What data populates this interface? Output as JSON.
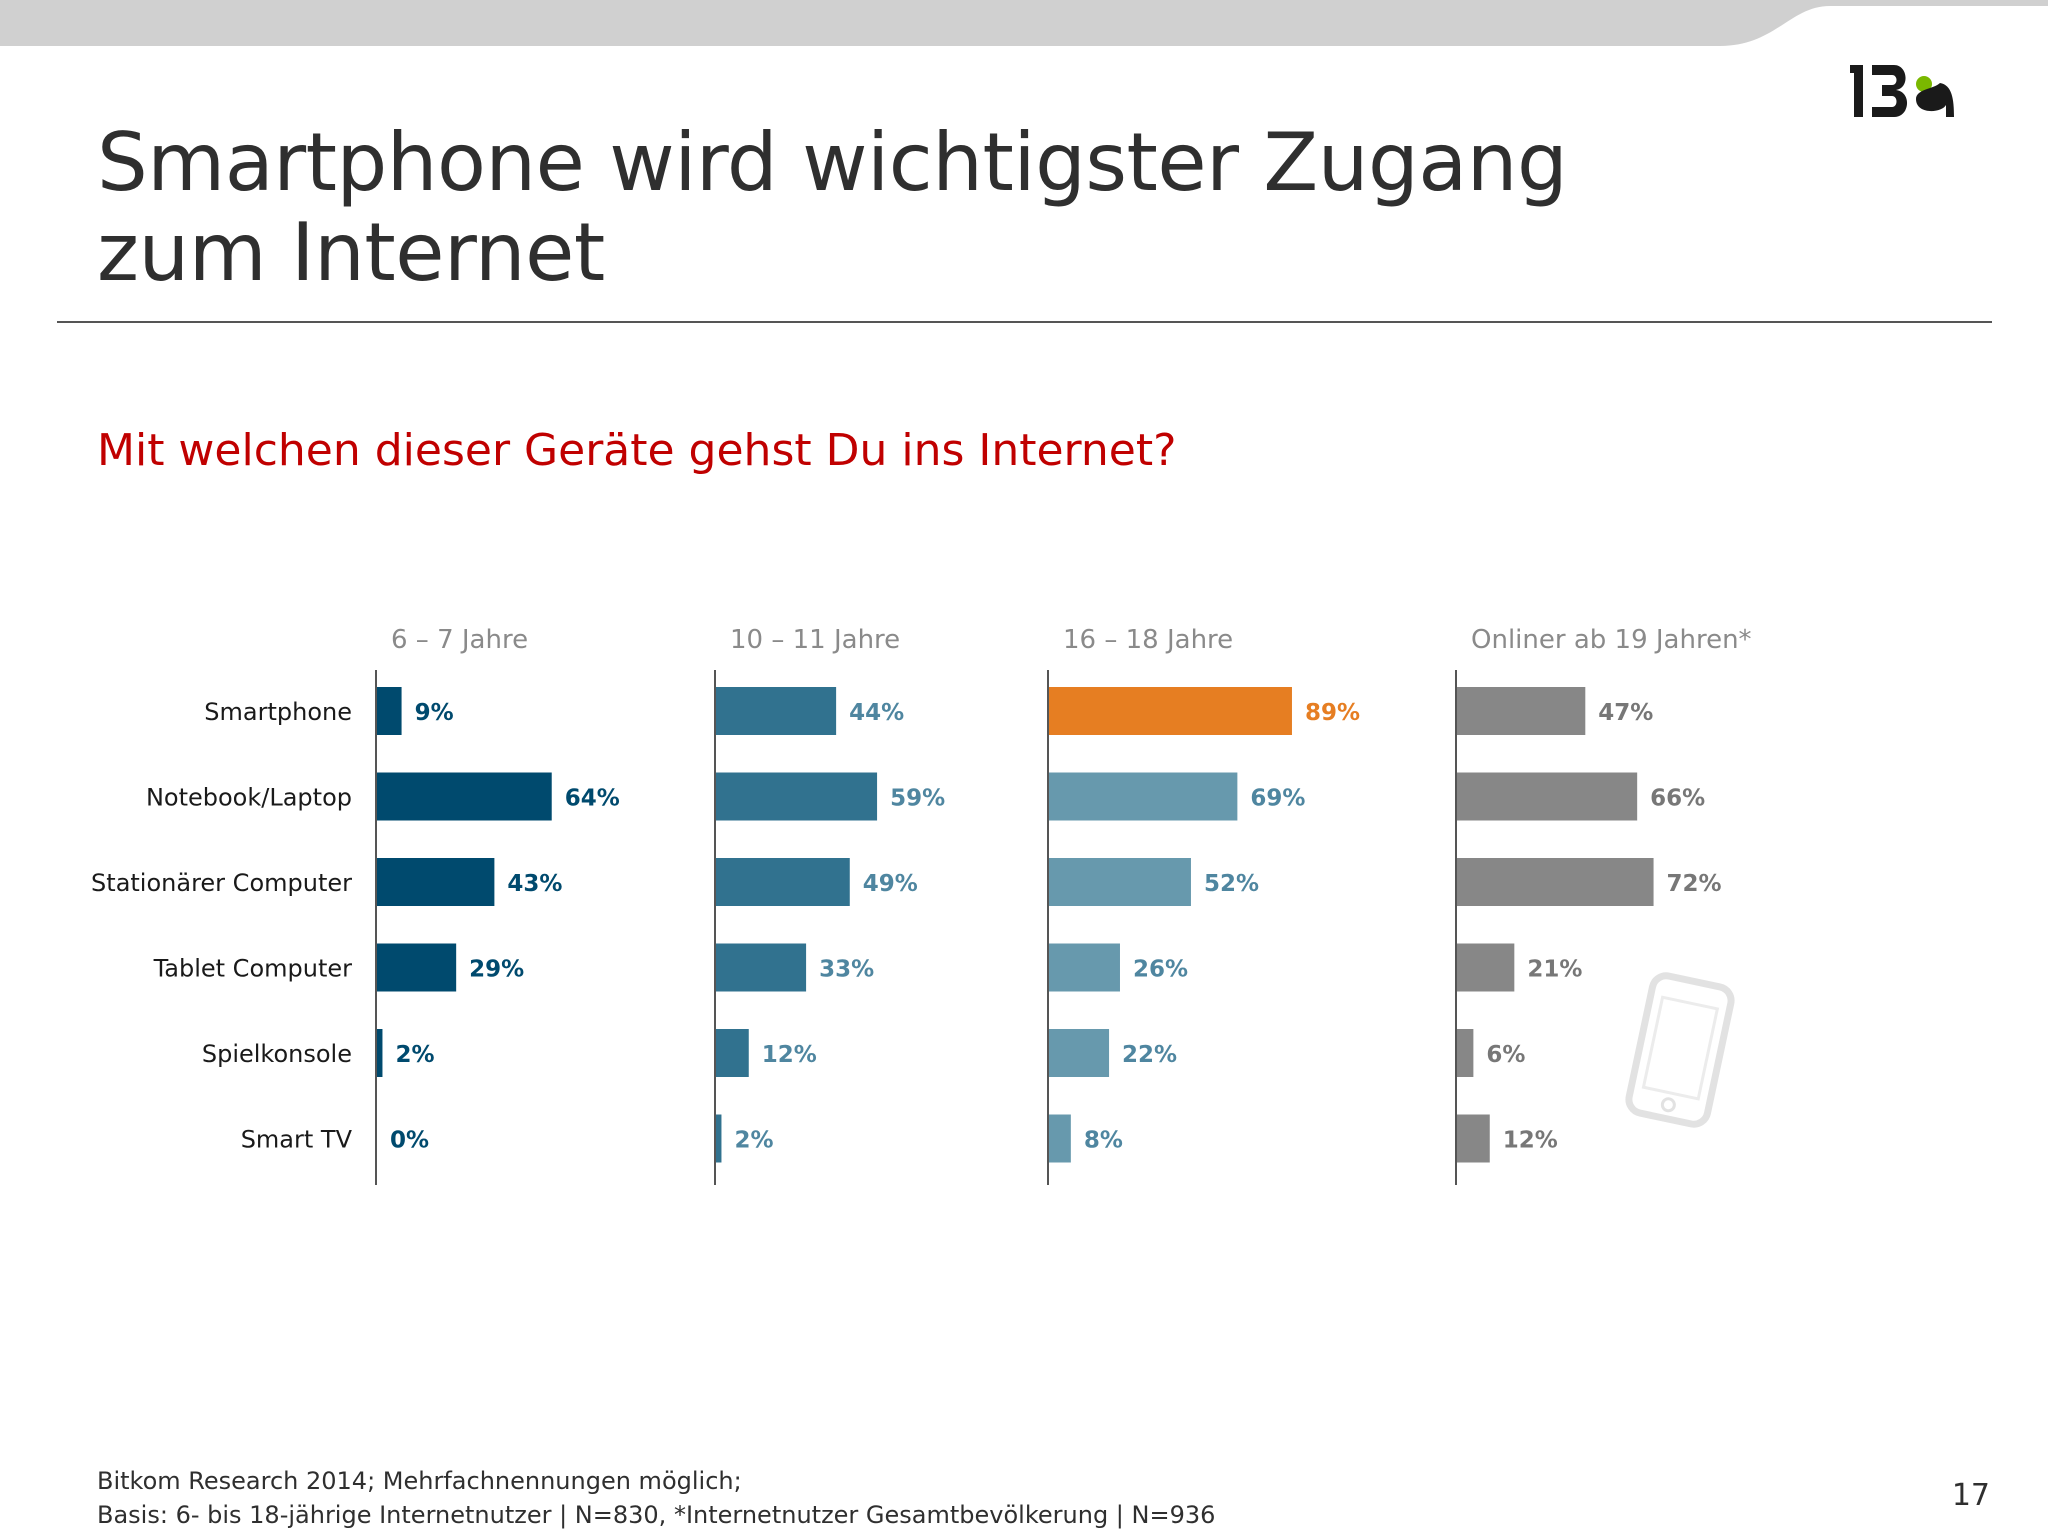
{
  "slide": {
    "title": "Smartphone wird wichtigster Zugang zum Internet",
    "question": "Mit welchen dieser Geräte gehst Du ins Internet?",
    "footnote_line1": "Bitkom Research 2014; Mehrfachnennungen möglich;",
    "footnote_line2": "Basis: 6- bis 18-jährige Internetnutzer | N=830, *Internetnutzer Gesamtbevölkerung | N=936",
    "page_number": "17",
    "logo_icon": "iba-logo-icon",
    "decoration_icon": "smartphone-outline-icon"
  },
  "chart_data": {
    "type": "bar",
    "orientation": "horizontal",
    "categories": [
      "Smartphone",
      "Notebook/Laptop",
      "Stationärer Computer",
      "Tablet Computer",
      "Spielkonsole",
      "Smart TV"
    ],
    "series": [
      {
        "name": "6 – 7 Jahre",
        "values": [
          9,
          64,
          43,
          29,
          2,
          0
        ],
        "labels": [
          "9%",
          "64%",
          "43%",
          "29%",
          "2%",
          "0%"
        ],
        "color": "#004a6e"
      },
      {
        "name": "10 – 11 Jahre",
        "values": [
          44,
          59,
          49,
          33,
          12,
          2
        ],
        "labels": [
          "44%",
          "59%",
          "49%",
          "33%",
          "12%",
          "2%"
        ],
        "color": "#31728f"
      },
      {
        "name": "16 – 18 Jahre",
        "values": [
          89,
          69,
          52,
          26,
          22,
          8
        ],
        "labels": [
          "89%",
          "69%",
          "52%",
          "26%",
          "22%",
          "8%"
        ],
        "color": "#6799ad",
        "highlight": {
          "index": 0,
          "color": "#e67e22"
        }
      },
      {
        "name": "Onliner ab 19 Jahren*",
        "values": [
          47,
          66,
          72,
          21,
          6,
          12
        ],
        "labels": [
          "47%",
          "66%",
          "72%",
          "21%",
          "6%",
          "12%"
        ],
        "color": "#878787"
      }
    ],
    "unit": "%",
    "xlim": [
      0,
      100
    ],
    "grid": false,
    "legend": "none",
    "label_color": "#2f2f2f"
  }
}
